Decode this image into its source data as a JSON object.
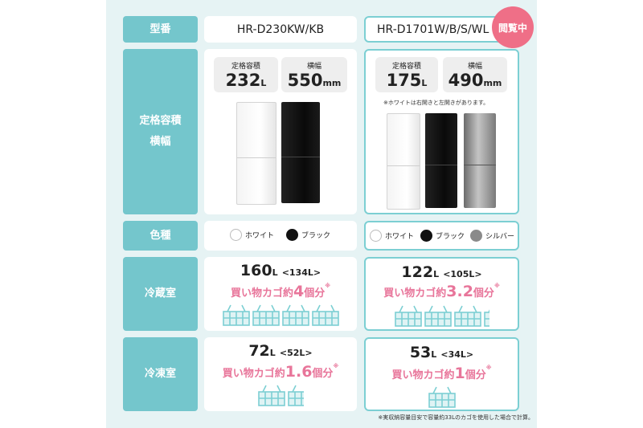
{
  "colors": {
    "label_bg": "#74c6cc",
    "panel_bg": "#e6f3f4",
    "accent_pink": "#e8759a",
    "badge_pink": "#ef6f87",
    "highlight_border": "#7ccfd3"
  },
  "rows": {
    "model_label": "型番",
    "capacity_label_line1": "定格容積",
    "capacity_label_line2": "横幅",
    "color_label": "色種",
    "fridge_label": "冷蔵室",
    "freezer_label": "冷凍室"
  },
  "product_a": {
    "model": "HR-D230KW/KB",
    "capacity_title": "定格容積",
    "capacity_value": "232",
    "capacity_unit": "L",
    "width_title": "横幅",
    "width_value": "550",
    "width_unit": "mm",
    "colors": [
      {
        "name": "ホワイト",
        "hex": "#ffffff"
      },
      {
        "name": "ブラック",
        "hex": "#111111"
      }
    ],
    "fridge": {
      "value": "160",
      "unit": "L",
      "sub": "<134L>",
      "pre": "買い物カゴ約",
      "num": "4",
      "post": "個分",
      "mark": "※",
      "baskets": 4
    },
    "freezer": {
      "value": "72",
      "unit": "L",
      "sub": "<52L>",
      "pre": "買い物カゴ約",
      "num": "1.6",
      "post": "個分",
      "mark": "※",
      "baskets": 1.6
    }
  },
  "product_b": {
    "model": "HR-D1701W/B/S/WL",
    "badge": "閲覧中",
    "capacity_title": "定格容積",
    "capacity_value": "175",
    "capacity_unit": "L",
    "width_title": "横幅",
    "width_value": "490",
    "width_unit": "mm",
    "note": "※ホワイトは右開きと左開きがあります。",
    "colors": [
      {
        "name": "ホワイト",
        "hex": "#ffffff"
      },
      {
        "name": "ブラック",
        "hex": "#111111"
      },
      {
        "name": "シルバー",
        "hex": "#8a8a8a"
      }
    ],
    "fridge": {
      "value": "122",
      "unit": "L",
      "sub": "<105L>",
      "pre": "買い物カゴ約",
      "num": "3.2",
      "post": "個分",
      "mark": "※",
      "baskets": 3.2
    },
    "freezer": {
      "value": "53",
      "unit": "L",
      "sub": "<34L>",
      "pre": "買い物カゴ約",
      "num": "1",
      "post": "個分",
      "mark": "※",
      "baskets": 1
    }
  },
  "footnote": "※実収納容量目安で容量約33Lのカゴを使用した場合で計算。"
}
